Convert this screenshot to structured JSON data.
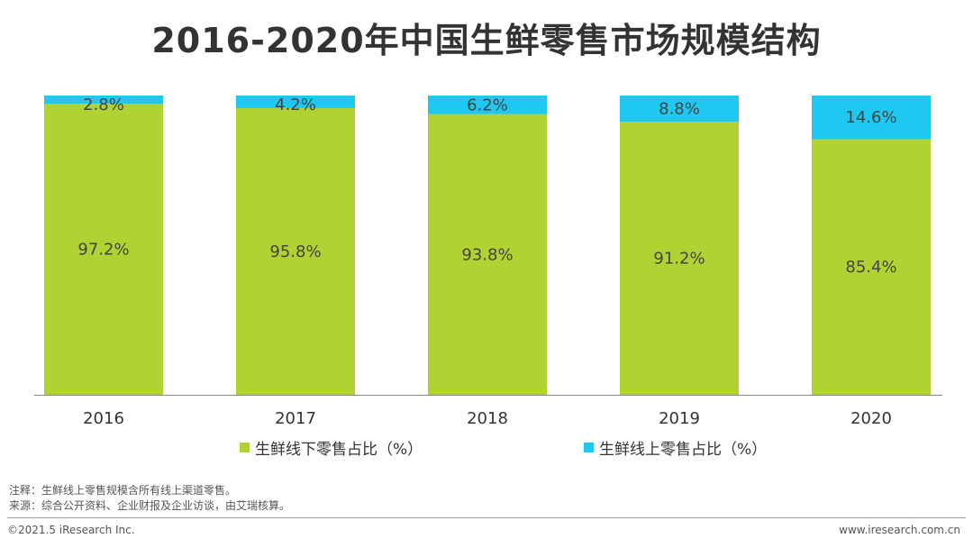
{
  "title": "2016-2020年中国生鲜零售市场规模结构",
  "chart_data": {
    "type": "bar",
    "stacked": true,
    "categories": [
      "2016",
      "2017",
      "2018",
      "2019",
      "2020"
    ],
    "series": [
      {
        "name": "生鲜线下零售占比（%）",
        "values": [
          97.2,
          95.8,
          93.8,
          91.2,
          85.4
        ],
        "labels": [
          "97.2%",
          "95.8%",
          "93.8%",
          "91.2%",
          "85.4%"
        ],
        "color": "#b0d232"
      },
      {
        "name": "生鲜线上零售占比（%）",
        "values": [
          2.8,
          4.2,
          6.2,
          8.8,
          14.6
        ],
        "labels": [
          "2.8%",
          "4.2%",
          "6.2%",
          "8.8%",
          "14.6%"
        ],
        "color": "#1ec8f0"
      }
    ],
    "ylim": [
      0,
      100
    ],
    "grid": false,
    "legend_position": "bottom"
  },
  "notes": {
    "line1": "注释：生鲜线上零售规模含所有线上渠道零售。",
    "line2": "来源：综合公开资料、企业财报及企业访谈，由艾瑞核算。"
  },
  "footer": {
    "copyright": "©2021.5 iResearch Inc.",
    "website": "www.iresearch.com.cn"
  }
}
